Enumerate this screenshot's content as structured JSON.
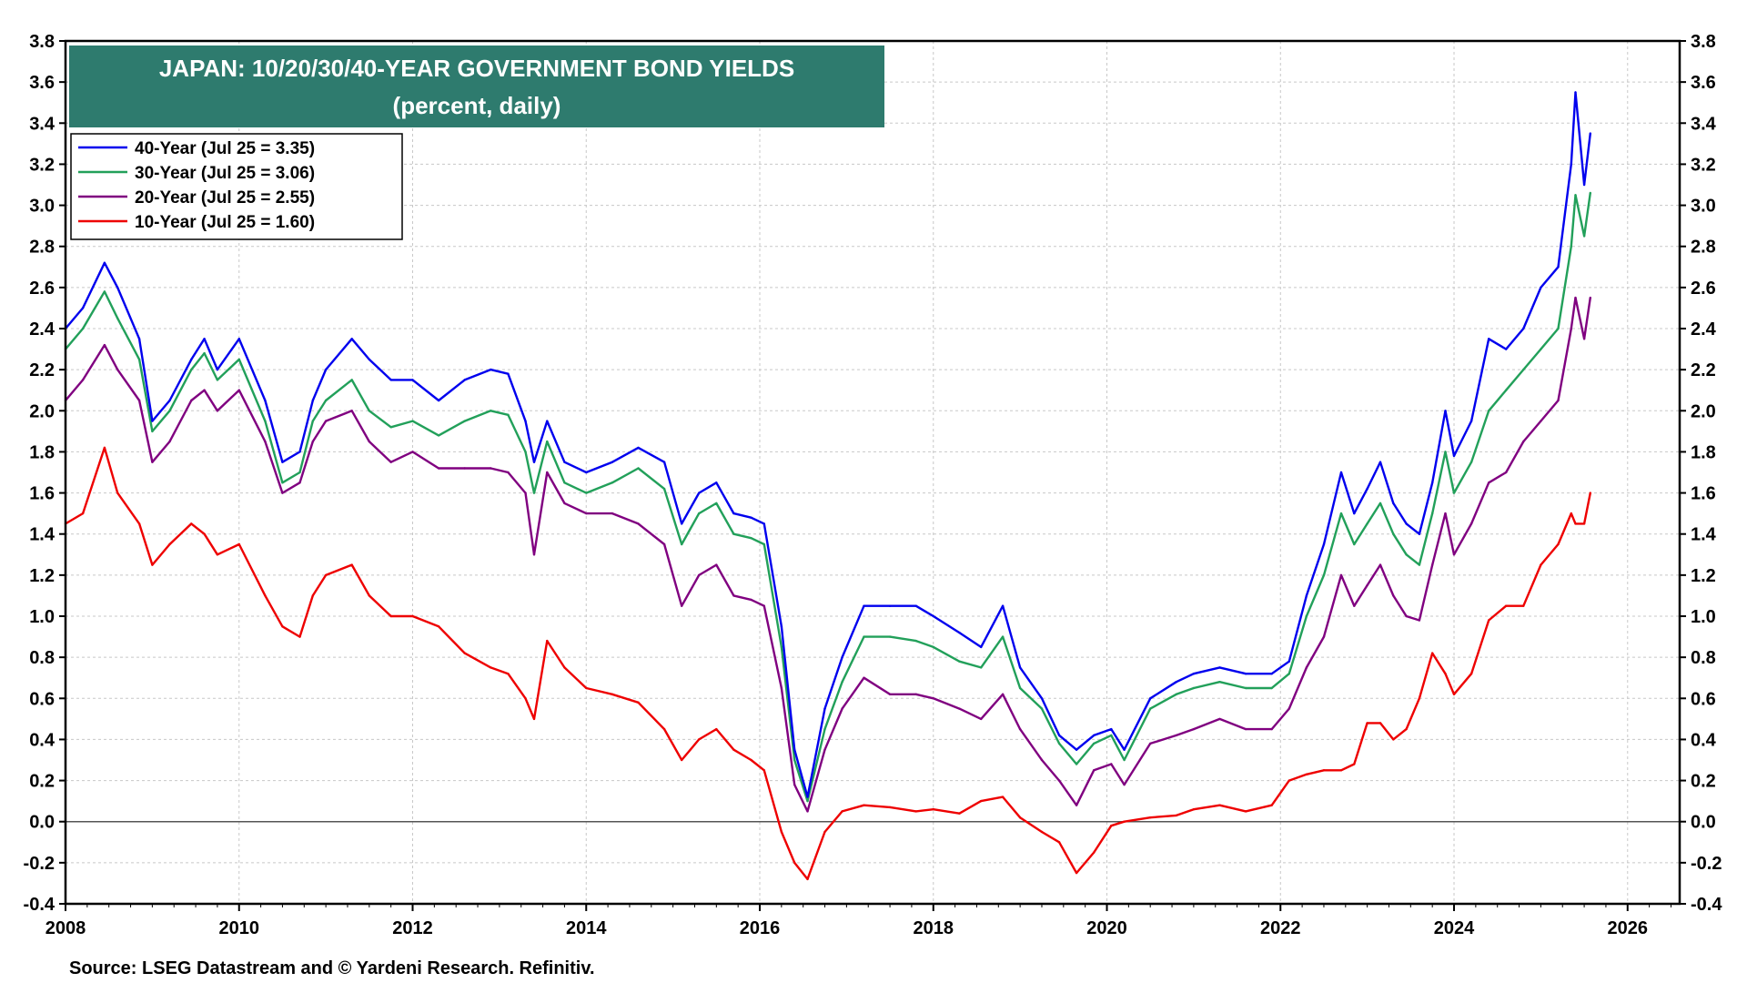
{
  "chart_data": {
    "type": "line",
    "title": "JAPAN: 10/20/30/40-YEAR GOVERNMENT BOND YIELDS",
    "subtitle": "(percent, daily)",
    "source": "Source: LSEG Datastream and © Yardeni Research. Refinitiv.",
    "xlim": [
      2008,
      2026.6
    ],
    "ylim": [
      -0.4,
      3.8
    ],
    "x_ticks": [
      2008,
      2010,
      2012,
      2014,
      2016,
      2018,
      2020,
      2022,
      2024,
      2026
    ],
    "y_ticks": [
      -0.4,
      -0.2,
      0.0,
      0.2,
      0.4,
      0.6,
      0.8,
      1.0,
      1.2,
      1.4,
      1.6,
      1.8,
      2.0,
      2.2,
      2.4,
      2.6,
      2.8,
      3.0,
      3.2,
      3.4,
      3.6,
      3.8
    ],
    "grid": true,
    "zero_line": true,
    "legend_position": "top-left",
    "series": [
      {
        "name": "40-Year (Jul 25 = 3.35)",
        "color": "#0000ee",
        "x": [
          2008.0,
          2008.2,
          2008.45,
          2008.6,
          2008.85,
          2009.0,
          2009.2,
          2009.45,
          2009.6,
          2009.75,
          2010.0,
          2010.3,
          2010.5,
          2010.7,
          2010.85,
          2011.0,
          2011.3,
          2011.5,
          2011.75,
          2012.0,
          2012.3,
          2012.6,
          2012.9,
          2013.1,
          2013.3,
          2013.4,
          2013.55,
          2013.75,
          2014.0,
          2014.3,
          2014.6,
          2014.9,
          2015.1,
          2015.3,
          2015.5,
          2015.7,
          2015.9,
          2016.05,
          2016.25,
          2016.4,
          2016.55,
          2016.75,
          2016.95,
          2017.2,
          2017.5,
          2017.8,
          2018.0,
          2018.3,
          2018.55,
          2018.8,
          2019.0,
          2019.25,
          2019.45,
          2019.65,
          2019.85,
          2020.05,
          2020.2,
          2020.5,
          2020.8,
          2021.0,
          2021.3,
          2021.6,
          2021.9,
          2022.1,
          2022.3,
          2022.5,
          2022.7,
          2022.85,
          2023.0,
          2023.15,
          2023.3,
          2023.45,
          2023.6,
          2023.75,
          2023.9,
          2024.0,
          2024.2,
          2024.4,
          2024.6,
          2024.8,
          2025.0,
          2025.2,
          2025.35,
          2025.4,
          2025.5,
          2025.57
        ],
        "values": [
          2.4,
          2.5,
          2.72,
          2.6,
          2.35,
          1.95,
          2.05,
          2.25,
          2.35,
          2.2,
          2.35,
          2.05,
          1.75,
          1.8,
          2.05,
          2.2,
          2.35,
          2.25,
          2.15,
          2.15,
          2.05,
          2.15,
          2.2,
          2.18,
          1.95,
          1.75,
          1.95,
          1.75,
          1.7,
          1.75,
          1.82,
          1.75,
          1.45,
          1.6,
          1.65,
          1.5,
          1.48,
          1.45,
          0.95,
          0.35,
          0.12,
          0.55,
          0.8,
          1.05,
          1.05,
          1.05,
          1.0,
          0.92,
          0.85,
          1.05,
          0.75,
          0.6,
          0.42,
          0.35,
          0.42,
          0.45,
          0.35,
          0.6,
          0.68,
          0.72,
          0.75,
          0.72,
          0.72,
          0.78,
          1.1,
          1.35,
          1.7,
          1.5,
          1.62,
          1.75,
          1.55,
          1.45,
          1.4,
          1.65,
          2.0,
          1.78,
          1.95,
          2.35,
          2.3,
          2.4,
          2.6,
          2.7,
          3.2,
          3.55,
          3.1,
          3.35
        ]
      },
      {
        "name": "30-Year (Jul 25 = 3.06)",
        "color": "#22a05a",
        "x": [
          2008.0,
          2008.2,
          2008.45,
          2008.6,
          2008.85,
          2009.0,
          2009.2,
          2009.45,
          2009.6,
          2009.75,
          2010.0,
          2010.3,
          2010.5,
          2010.7,
          2010.85,
          2011.0,
          2011.3,
          2011.5,
          2011.75,
          2012.0,
          2012.3,
          2012.6,
          2012.9,
          2013.1,
          2013.3,
          2013.4,
          2013.55,
          2013.75,
          2014.0,
          2014.3,
          2014.6,
          2014.9,
          2015.1,
          2015.3,
          2015.5,
          2015.7,
          2015.9,
          2016.05,
          2016.25,
          2016.4,
          2016.55,
          2016.75,
          2016.95,
          2017.2,
          2017.5,
          2017.8,
          2018.0,
          2018.3,
          2018.55,
          2018.8,
          2019.0,
          2019.25,
          2019.45,
          2019.65,
          2019.85,
          2020.05,
          2020.2,
          2020.5,
          2020.8,
          2021.0,
          2021.3,
          2021.6,
          2021.9,
          2022.1,
          2022.3,
          2022.5,
          2022.7,
          2022.85,
          2023.0,
          2023.15,
          2023.3,
          2023.45,
          2023.6,
          2023.75,
          2023.9,
          2024.0,
          2024.2,
          2024.4,
          2024.6,
          2024.8,
          2025.0,
          2025.2,
          2025.35,
          2025.4,
          2025.5,
          2025.57
        ],
        "values": [
          2.3,
          2.4,
          2.58,
          2.45,
          2.25,
          1.9,
          2.0,
          2.2,
          2.28,
          2.15,
          2.25,
          1.95,
          1.65,
          1.7,
          1.95,
          2.05,
          2.15,
          2.0,
          1.92,
          1.95,
          1.88,
          1.95,
          2.0,
          1.98,
          1.8,
          1.6,
          1.85,
          1.65,
          1.6,
          1.65,
          1.72,
          1.62,
          1.35,
          1.5,
          1.55,
          1.4,
          1.38,
          1.35,
          0.85,
          0.3,
          0.1,
          0.45,
          0.68,
          0.9,
          0.9,
          0.88,
          0.85,
          0.78,
          0.75,
          0.9,
          0.65,
          0.55,
          0.38,
          0.28,
          0.38,
          0.42,
          0.3,
          0.55,
          0.62,
          0.65,
          0.68,
          0.65,
          0.65,
          0.72,
          1.0,
          1.2,
          1.5,
          1.35,
          1.45,
          1.55,
          1.4,
          1.3,
          1.25,
          1.5,
          1.8,
          1.6,
          1.75,
          2.0,
          2.1,
          2.2,
          2.3,
          2.4,
          2.8,
          3.05,
          2.85,
          3.06
        ]
      },
      {
        "name": "20-Year (Jul 25 = 2.55)",
        "color": "#800080",
        "x": [
          2008.0,
          2008.2,
          2008.45,
          2008.6,
          2008.85,
          2009.0,
          2009.2,
          2009.45,
          2009.6,
          2009.75,
          2010.0,
          2010.3,
          2010.5,
          2010.7,
          2010.85,
          2011.0,
          2011.3,
          2011.5,
          2011.75,
          2012.0,
          2012.3,
          2012.6,
          2012.9,
          2013.1,
          2013.3,
          2013.4,
          2013.55,
          2013.75,
          2014.0,
          2014.3,
          2014.6,
          2014.9,
          2015.1,
          2015.3,
          2015.5,
          2015.7,
          2015.9,
          2016.05,
          2016.25,
          2016.4,
          2016.55,
          2016.75,
          2016.95,
          2017.2,
          2017.5,
          2017.8,
          2018.0,
          2018.3,
          2018.55,
          2018.8,
          2019.0,
          2019.25,
          2019.45,
          2019.65,
          2019.85,
          2020.05,
          2020.2,
          2020.5,
          2020.8,
          2021.0,
          2021.3,
          2021.6,
          2021.9,
          2022.1,
          2022.3,
          2022.5,
          2022.7,
          2022.85,
          2023.0,
          2023.15,
          2023.3,
          2023.45,
          2023.6,
          2023.75,
          2023.9,
          2024.0,
          2024.2,
          2024.4,
          2024.6,
          2024.8,
          2025.0,
          2025.2,
          2025.35,
          2025.4,
          2025.5,
          2025.57
        ],
        "values": [
          2.05,
          2.15,
          2.32,
          2.2,
          2.05,
          1.75,
          1.85,
          2.05,
          2.1,
          2.0,
          2.1,
          1.85,
          1.6,
          1.65,
          1.85,
          1.95,
          2.0,
          1.85,
          1.75,
          1.8,
          1.72,
          1.72,
          1.72,
          1.7,
          1.6,
          1.3,
          1.7,
          1.55,
          1.5,
          1.5,
          1.45,
          1.35,
          1.05,
          1.2,
          1.25,
          1.1,
          1.08,
          1.05,
          0.65,
          0.18,
          0.05,
          0.35,
          0.55,
          0.7,
          0.62,
          0.62,
          0.6,
          0.55,
          0.5,
          0.62,
          0.45,
          0.3,
          0.2,
          0.08,
          0.25,
          0.28,
          0.18,
          0.38,
          0.42,
          0.45,
          0.5,
          0.45,
          0.45,
          0.55,
          0.75,
          0.9,
          1.2,
          1.05,
          1.15,
          1.25,
          1.1,
          1.0,
          0.98,
          1.25,
          1.5,
          1.3,
          1.45,
          1.65,
          1.7,
          1.85,
          1.95,
          2.05,
          2.4,
          2.55,
          2.35,
          2.55
        ]
      },
      {
        "name": "10-Year (Jul 25 = 1.60)",
        "color": "#ee0000",
        "x": [
          2008.0,
          2008.2,
          2008.45,
          2008.6,
          2008.85,
          2009.0,
          2009.2,
          2009.45,
          2009.6,
          2009.75,
          2010.0,
          2010.3,
          2010.5,
          2010.7,
          2010.85,
          2011.0,
          2011.3,
          2011.5,
          2011.75,
          2012.0,
          2012.3,
          2012.6,
          2012.9,
          2013.1,
          2013.3,
          2013.4,
          2013.55,
          2013.75,
          2014.0,
          2014.3,
          2014.6,
          2014.9,
          2015.1,
          2015.3,
          2015.5,
          2015.7,
          2015.9,
          2016.05,
          2016.25,
          2016.4,
          2016.55,
          2016.75,
          2016.95,
          2017.2,
          2017.5,
          2017.8,
          2018.0,
          2018.3,
          2018.55,
          2018.8,
          2019.0,
          2019.25,
          2019.45,
          2019.65,
          2019.85,
          2020.05,
          2020.2,
          2020.5,
          2020.8,
          2021.0,
          2021.3,
          2021.6,
          2021.9,
          2022.1,
          2022.3,
          2022.5,
          2022.7,
          2022.85,
          2023.0,
          2023.15,
          2023.3,
          2023.45,
          2023.6,
          2023.75,
          2023.9,
          2024.0,
          2024.2,
          2024.4,
          2024.6,
          2024.8,
          2025.0,
          2025.2,
          2025.35,
          2025.4,
          2025.5,
          2025.57
        ],
        "values": [
          1.45,
          1.5,
          1.82,
          1.6,
          1.45,
          1.25,
          1.35,
          1.45,
          1.4,
          1.3,
          1.35,
          1.1,
          0.95,
          0.9,
          1.1,
          1.2,
          1.25,
          1.1,
          1.0,
          1.0,
          0.95,
          0.82,
          0.75,
          0.72,
          0.6,
          0.5,
          0.88,
          0.75,
          0.65,
          0.62,
          0.58,
          0.45,
          0.3,
          0.4,
          0.45,
          0.35,
          0.3,
          0.25,
          -0.05,
          -0.2,
          -0.28,
          -0.05,
          0.05,
          0.08,
          0.07,
          0.05,
          0.06,
          0.04,
          0.1,
          0.12,
          0.02,
          -0.05,
          -0.1,
          -0.25,
          -0.15,
          -0.02,
          0.0,
          0.02,
          0.03,
          0.06,
          0.08,
          0.05,
          0.08,
          0.2,
          0.23,
          0.25,
          0.25,
          0.28,
          0.48,
          0.48,
          0.4,
          0.45,
          0.6,
          0.82,
          0.72,
          0.62,
          0.72,
          0.98,
          1.05,
          1.05,
          1.25,
          1.35,
          1.5,
          1.45,
          1.45,
          1.6
        ]
      }
    ]
  }
}
